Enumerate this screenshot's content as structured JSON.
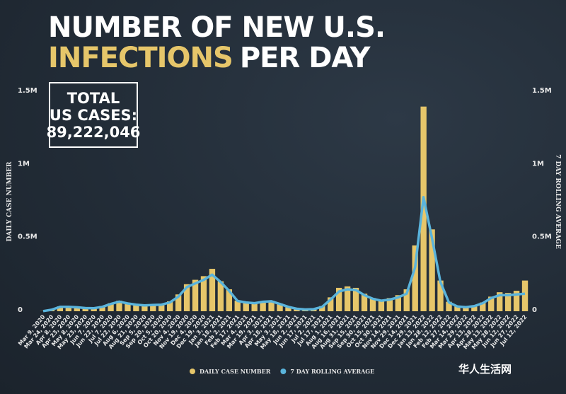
{
  "chart_data": {
    "type": "bar",
    "title_line1": "NUMBER OF NEW U.S.",
    "title_highlight": "INFECTIONS",
    "title_rest": "PER DAY",
    "annotation": {
      "lines": [
        "TOTAL",
        "US CASES:"
      ],
      "value": "89,222,046"
    },
    "y_label": "DAILY CASE NUMBER",
    "y2_label": "7 DAY ROLLING AVERAGE",
    "watermark": "华人生活网",
    "categories": [
      "Mar 9, 2020",
      "Mar 24, 2020",
      "Apr 8, 2020",
      "Apr 23, 2020",
      "May 8, 2020",
      "May 23, 2020",
      "Jun 7, 2020",
      "Jun 22, 2020",
      "Jul 7, 2020",
      "Jul 22, 2020",
      "Aug 6, 2020",
      "Aug 21, 2020",
      "Sep 5, 2020",
      "Sep 20, 2020",
      "Oct 5, 2020",
      "Oct 20, 2020",
      "Nov 4, 2020",
      "Nov 19, 2020",
      "Dec 4, 2020",
      "Dec 19, 2020",
      "Jan 3, 2021",
      "Jan 18, 2021",
      "Feb 2, 2021",
      "Feb 17, 2021",
      "Mar 4, 2021",
      "Mar 19, 2021",
      "Apr 3, 2021",
      "Apr 18, 2021",
      "May 3, 2021",
      "May 18, 2021",
      "Jun 2, 2021",
      "Jun 17, 2021",
      "Jul 2, 2021",
      "Jul 17, 2021",
      "Aug 1, 2021",
      "Aug 16, 2021",
      "Aug 31, 2021",
      "Sep 15, 2021",
      "Sep 30, 2021",
      "Oct 15, 2021",
      "Oct 30, 2021",
      "Nov 14, 2021",
      "Nov 29, 2021",
      "Dec 14, 2021",
      "Dec 29, 2021",
      "Jan 13, 2022",
      "Jan 28, 2022",
      "Feb 12, 2022",
      "Feb 27, 2022",
      "Mar 14, 2022",
      "Mar 29, 2022",
      "Apr 13, 2022",
      "Apr 28, 2022",
      "May 13, 2022",
      "May 28, 2022",
      "Jun 12, 2022",
      "Jun 27, 2022",
      "Jul 12, 2022"
    ],
    "series": [
      {
        "name": "DAILY CASE NUMBER",
        "type": "bar",
        "color": "#e6c66a",
        "values": [
          1000,
          12000,
          34000,
          33000,
          29000,
          20000,
          23000,
          36000,
          55000,
          72000,
          58000,
          48000,
          35000,
          46000,
          50000,
          68000,
          115000,
          185000,
          215000,
          240000,
          290000,
          205000,
          150000,
          72000,
          58000,
          60000,
          70000,
          72000,
          52000,
          28000,
          15000,
          10000,
          18000,
          35000,
          95000,
          160000,
          170000,
          160000,
          120000,
          90000,
          75000,
          90000,
          110000,
          150000,
          450000,
          1400000,
          560000,
          210000,
          65000,
          35000,
          25000,
          40000,
          60000,
          100000,
          130000,
          125000,
          140000,
          210000
        ]
      },
      {
        "name": "7 DAY ROLLING AVERAGE",
        "type": "line",
        "axis": "y2",
        "color": "#5ab4dc",
        "values": [
          1000,
          10000,
          30000,
          30000,
          27000,
          22000,
          21000,
          30000,
          50000,
          66000,
          53000,
          45000,
          40000,
          43000,
          45000,
          60000,
          100000,
          165000,
          190000,
          215000,
          250000,
          200000,
          140000,
          70000,
          60000,
          55000,
          65000,
          68000,
          50000,
          30000,
          17000,
          12000,
          14000,
          30000,
          80000,
          135000,
          150000,
          145000,
          110000,
          85000,
          72000,
          80000,
          95000,
          120000,
          300000,
          780000,
          500000,
          200000,
          60000,
          33000,
          28000,
          35000,
          55000,
          90000,
          110000,
          110000,
          115000,
          120000
        ]
      }
    ],
    "ylim": [
      0,
      1500000
    ],
    "yticks": [
      0,
      {
        "value": 500000,
        "label": "0.5M"
      },
      {
        "value": 1000000,
        "label": "1M"
      },
      {
        "value": 1500000,
        "label": "1.5M"
      }
    ],
    "y2lim": [
      0,
      1500000
    ],
    "y2ticks": [
      0,
      {
        "value": 500000,
        "label": "0.5M"
      },
      {
        "value": 1000000,
        "label": "1M"
      },
      {
        "value": 1500000,
        "label": "1.5M"
      }
    ],
    "legend": "bottom"
  }
}
